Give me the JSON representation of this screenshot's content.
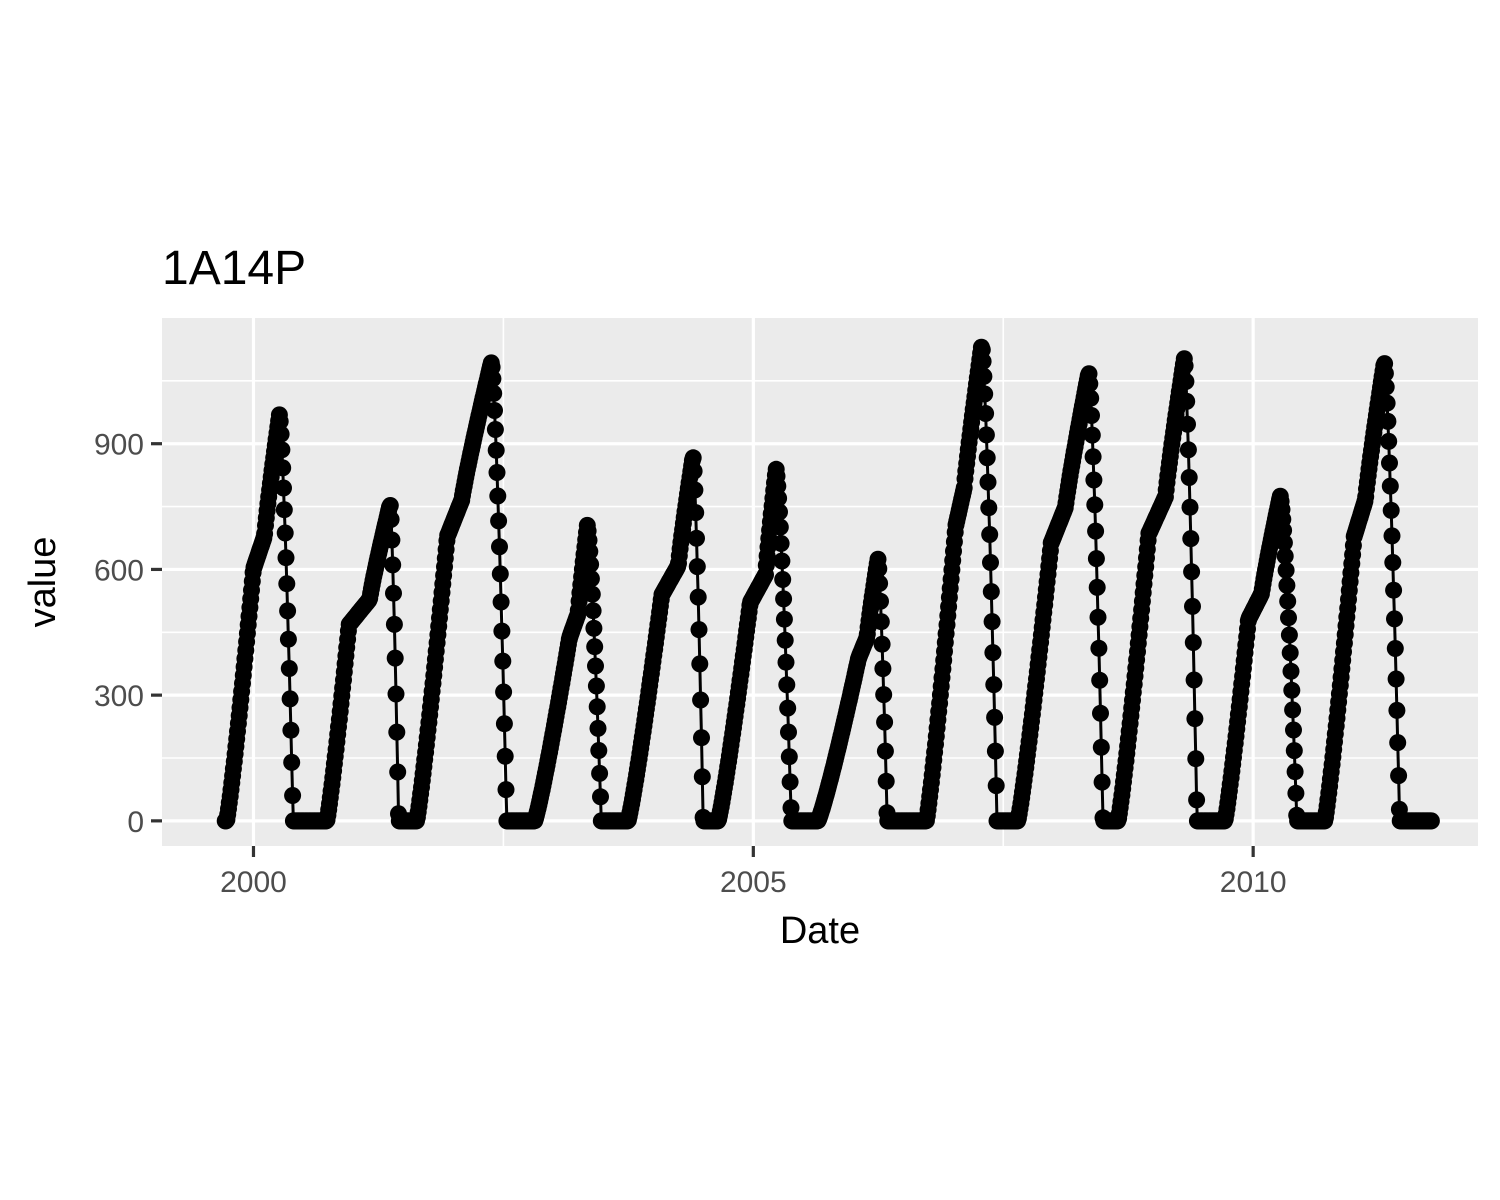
{
  "chart_data": {
    "type": "line",
    "title": "1A14P",
    "xlabel": "Date",
    "ylabel": "value",
    "x_tick_labels": [
      "2000",
      "2005",
      "2010"
    ],
    "y_tick_labels": [
      "0",
      "300",
      "600",
      "900"
    ],
    "x_ticks_years": [
      2000,
      2005,
      2010
    ],
    "y_ticks": [
      0,
      300,
      600,
      900
    ],
    "xlim": [
      "1999-02-01",
      "2012-04-01"
    ],
    "ylim": [
      -60,
      1200
    ],
    "grid": true,
    "colors": {
      "panel": "#ebebeb",
      "grid": "#ffffff",
      "series": "#000000",
      "tick_text": "#4d4d4d"
    },
    "marker": "circle",
    "series": [
      {
        "cycles": [
          {
            "start": "1999-09-25",
            "plateau_start": "2000-01-01",
            "plateau_end": "2000-02-10",
            "peak_date": "2000-04-05",
            "peak": 970,
            "end": "2000-05-25"
          },
          {
            "start": "2000-09-25",
            "plateau_start": "2000-12-15",
            "plateau_end": "2001-03-01",
            "peak_date": "2001-05-15",
            "peak": 755,
            "end": "2001-06-15"
          },
          {
            "start": "2001-08-20",
            "plateau_start": "2001-12-10",
            "plateau_end": "2002-02-01",
            "peak_date": "2002-05-20",
            "peak": 1095,
            "end": "2002-07-15"
          },
          {
            "start": "2002-10-25",
            "plateau_start": "2003-03-01",
            "plateau_end": "2003-04-01",
            "peak_date": "2003-05-05",
            "peak": 705,
            "end": "2003-06-25"
          },
          {
            "start": "2003-10-01",
            "plateau_start": "2004-02-01",
            "plateau_end": "2004-04-01",
            "peak_date": "2004-05-25",
            "peak": 870,
            "end": "2004-07-01"
          },
          {
            "start": "2004-08-25",
            "plateau_start": "2004-12-20",
            "plateau_end": "2005-02-15",
            "peak_date": "2005-03-25",
            "peak": 840,
            "end": "2005-05-20"
          },
          {
            "start": "2005-08-25",
            "plateau_start": "2006-01-20",
            "plateau_end": "2006-02-20",
            "peak_date": "2006-04-01",
            "peak": 625,
            "end": "2006-05-05"
          },
          {
            "start": "2006-09-25",
            "plateau_start": "2007-01-10",
            "plateau_end": "2007-02-10",
            "peak_date": "2007-04-15",
            "peak": 1135,
            "end": "2007-06-10"
          },
          {
            "start": "2007-08-25",
            "plateau_start": "2007-12-25",
            "plateau_end": "2008-02-15",
            "peak_date": "2008-05-10",
            "peak": 1070,
            "end": "2008-07-01"
          },
          {
            "start": "2008-08-25",
            "plateau_start": "2008-12-15",
            "plateau_end": "2009-02-15",
            "peak_date": "2009-04-25",
            "peak": 1105,
            "end": "2009-06-10"
          },
          {
            "start": "2009-09-20",
            "plateau_start": "2009-12-15",
            "plateau_end": "2010-02-01",
            "peak_date": "2010-04-10",
            "peak": 775,
            "end": "2010-06-10"
          },
          {
            "start": "2010-09-20",
            "plateau_start": "2011-01-05",
            "plateau_end": "2011-02-15",
            "peak_date": "2011-04-25",
            "peak": 1095,
            "end": "2011-06-20"
          }
        ],
        "range_start": "1999-09-20",
        "range_end": "2011-10-15"
      }
    ]
  }
}
